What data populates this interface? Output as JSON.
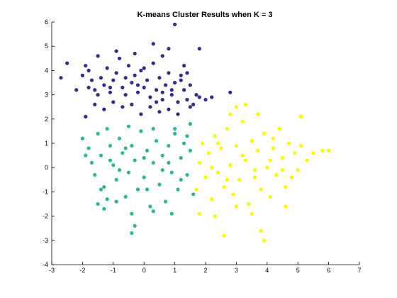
{
  "chart_data": {
    "type": "scatter",
    "title": "K-means Cluster Results when K = 3",
    "xlabel": "",
    "ylabel": "",
    "xlim": [
      -3,
      7
    ],
    "ylim": [
      -4,
      6
    ],
    "xticks": [
      -3,
      -2,
      -1,
      0,
      1,
      2,
      3,
      4,
      5,
      6,
      7
    ],
    "yticks": [
      -4,
      -3,
      -2,
      -1,
      0,
      1,
      2,
      3,
      4,
      5,
      6
    ],
    "grid": false,
    "legend": "none",
    "series": [
      {
        "color": "#352a87",
        "points": [
          [
            -2.7,
            3.7
          ],
          [
            -2.5,
            4.3
          ],
          [
            -2.2,
            3.2
          ],
          [
            -2.0,
            3.8
          ],
          [
            -1.9,
            4.2
          ],
          [
            -1.8,
            4.0
          ],
          [
            -1.7,
            3.6
          ],
          [
            -1.6,
            3.2
          ],
          [
            -1.5,
            3.0
          ],
          [
            -1.4,
            3.7
          ],
          [
            -1.3,
            3.4
          ],
          [
            -1.2,
            4.1
          ],
          [
            -1.1,
            3.1
          ],
          [
            -1.0,
            3.6
          ],
          [
            -0.9,
            3.9
          ],
          [
            -0.8,
            4.5
          ],
          [
            -0.7,
            3.3
          ],
          [
            -0.6,
            3.0
          ],
          [
            -0.5,
            4.2
          ],
          [
            -0.4,
            3.5
          ],
          [
            -0.3,
            3.8
          ],
          [
            -0.2,
            3.1
          ],
          [
            -0.1,
            4.0
          ],
          [
            0.0,
            3.3
          ],
          [
            0.1,
            3.6
          ],
          [
            0.2,
            2.9
          ],
          [
            0.3,
            4.3
          ],
          [
            0.4,
            3.2
          ],
          [
            0.5,
            3.7
          ],
          [
            0.6,
            2.8
          ],
          [
            0.7,
            3.4
          ],
          [
            0.8,
            3.9
          ],
          [
            0.9,
            3.0
          ],
          [
            1.0,
            3.5
          ],
          [
            1.1,
            2.7
          ],
          [
            1.2,
            3.8
          ],
          [
            1.3,
            3.2
          ],
          [
            1.4,
            2.8
          ],
          [
            1.5,
            3.4
          ],
          [
            1.6,
            2.6
          ],
          [
            1.7,
            3.0
          ],
          [
            1.8,
            2.9
          ],
          [
            -1.9,
            2.1
          ],
          [
            -1.6,
            2.6
          ],
          [
            -1.3,
            2.4
          ],
          [
            -1.0,
            2.7
          ],
          [
            -0.7,
            2.5
          ],
          [
            -0.4,
            2.6
          ],
          [
            -0.1,
            2.2
          ],
          [
            0.2,
            2.5
          ],
          [
            0.5,
            2.3
          ],
          [
            0.8,
            2.4
          ],
          [
            1.1,
            2.2
          ],
          [
            1.5,
            2.5
          ],
          [
            -0.9,
            4.8
          ],
          [
            -0.3,
            4.7
          ],
          [
            0.3,
            5.1
          ],
          [
            0.8,
            4.9
          ],
          [
            1.0,
            5.9
          ],
          [
            1.8,
            4.9
          ],
          [
            -1.5,
            4.6
          ],
          [
            0.6,
            4.6
          ],
          [
            1.3,
            4.2
          ],
          [
            2.0,
            2.8
          ],
          [
            2.2,
            2.9
          ],
          [
            2.8,
            3.1
          ],
          [
            -1.1,
            3.3
          ],
          [
            -0.6,
            3.7
          ],
          [
            0.0,
            4.1
          ],
          [
            0.4,
            2.7
          ],
          [
            0.9,
            3.2
          ],
          [
            1.2,
            3.6
          ],
          [
            -1.8,
            3.3
          ],
          [
            -0.2,
            3.4
          ],
          [
            0.6,
            3.1
          ],
          [
            1.4,
            3.9
          ]
        ]
      },
      {
        "color": "#2fb595",
        "points": [
          [
            -2.0,
            1.2
          ],
          [
            -1.8,
            0.8
          ],
          [
            -1.7,
            0.2
          ],
          [
            -1.6,
            -0.3
          ],
          [
            -1.5,
            1.4
          ],
          [
            -1.4,
            0.5
          ],
          [
            -1.3,
            -0.8
          ],
          [
            -1.2,
            -1.3
          ],
          [
            -1.1,
            0.9
          ],
          [
            -1.0,
            0.1
          ],
          [
            -0.9,
            -0.5
          ],
          [
            -0.8,
            1.2
          ],
          [
            -0.7,
            0.6
          ],
          [
            -0.6,
            -1.2
          ],
          [
            -0.5,
            -0.2
          ],
          [
            -0.4,
            0.9
          ],
          [
            -0.3,
            0.3
          ],
          [
            -0.2,
            -0.9
          ],
          [
            -0.1,
            1.5
          ],
          [
            0.0,
            -0.4
          ],
          [
            0.1,
            0.7
          ],
          [
            0.2,
            -1.6
          ],
          [
            0.3,
            0.2
          ],
          [
            0.4,
            1.1
          ],
          [
            0.5,
            -0.7
          ],
          [
            0.6,
            0.5
          ],
          [
            0.7,
            -1.4
          ],
          [
            0.8,
            0.9
          ],
          [
            0.9,
            -0.2
          ],
          [
            1.0,
            1.4
          ],
          [
            1.1,
            -0.9
          ],
          [
            1.2,
            0.4
          ],
          [
            1.3,
            1.0
          ],
          [
            1.4,
            -0.3
          ],
          [
            1.5,
            0.7
          ],
          [
            1.6,
            -1.1
          ],
          [
            -1.5,
            -1.5
          ],
          [
            -1.3,
            -1.7
          ],
          [
            -0.9,
            -1.4
          ],
          [
            -0.4,
            -1.9
          ],
          [
            0.3,
            -1.8
          ],
          [
            0.9,
            -1.9
          ],
          [
            -0.3,
            -2.4
          ],
          [
            -0.4,
            -2.7
          ],
          [
            -1.9,
            0.5
          ],
          [
            -1.2,
            1.6
          ],
          [
            -0.5,
            1.7
          ],
          [
            0.3,
            1.6
          ],
          [
            1.0,
            1.6
          ],
          [
            1.5,
            1.8
          ],
          [
            -0.8,
            -0.1
          ],
          [
            0.0,
            0.4
          ],
          [
            0.6,
            -0.1
          ],
          [
            1.2,
            -0.5
          ],
          [
            -1.1,
            0.3
          ],
          [
            -0.6,
            0.8
          ],
          [
            0.1,
            -0.9
          ],
          [
            0.8,
            0.2
          ],
          [
            1.4,
            1.3
          ],
          [
            -1.4,
            -0.9
          ]
        ]
      },
      {
        "color": "#f9f905",
        "points": [
          [
            1.7,
            -0.9
          ],
          [
            1.8,
            0.2
          ],
          [
            1.9,
            1.0
          ],
          [
            2.0,
            -0.4
          ],
          [
            2.1,
            0.6
          ],
          [
            2.2,
            -1.3
          ],
          [
            2.3,
            1.3
          ],
          [
            2.4,
            -0.2
          ],
          [
            2.5,
            0.8
          ],
          [
            2.6,
            -0.8
          ],
          [
            2.7,
            1.6
          ],
          [
            2.8,
            0.1
          ],
          [
            2.9,
            -1.1
          ],
          [
            3.0,
            0.9
          ],
          [
            3.1,
            -0.5
          ],
          [
            3.2,
            1.9
          ],
          [
            3.3,
            0.3
          ],
          [
            3.4,
            -1.5
          ],
          [
            3.5,
            1.1
          ],
          [
            3.6,
            -0.1
          ],
          [
            3.7,
            0.7
          ],
          [
            3.8,
            -0.9
          ],
          [
            3.9,
            1.4
          ],
          [
            4.0,
            0.0
          ],
          [
            4.1,
            -1.2
          ],
          [
            4.2,
            0.8
          ],
          [
            4.3,
            -0.3
          ],
          [
            4.4,
            1.6
          ],
          [
            4.5,
            0.4
          ],
          [
            4.6,
            -0.8
          ],
          [
            4.7,
            1.0
          ],
          [
            4.8,
            -0.4
          ],
          [
            4.9,
            0.6
          ],
          [
            5.0,
            -0.1
          ],
          [
            5.1,
            0.9
          ],
          [
            5.3,
            0.3
          ],
          [
            5.5,
            0.6
          ],
          [
            5.8,
            0.7
          ],
          [
            6.0,
            0.7
          ],
          [
            1.8,
            -1.9
          ],
          [
            2.3,
            -2.0
          ],
          [
            2.6,
            -2.8
          ],
          [
            3.5,
            -1.9
          ],
          [
            3.8,
            -2.6
          ],
          [
            3.9,
            -3.0
          ],
          [
            4.6,
            -1.6
          ],
          [
            2.8,
            2.2
          ],
          [
            3.0,
            2.5
          ],
          [
            3.3,
            2.6
          ],
          [
            3.7,
            2.2
          ],
          [
            5.1,
            2.1
          ],
          [
            2.2,
            0.0
          ],
          [
            2.7,
            -0.5
          ],
          [
            3.2,
            0.5
          ],
          [
            3.6,
            -0.4
          ],
          [
            4.1,
            0.3
          ],
          [
            4.5,
            -0.1
          ],
          [
            2.4,
            1.0
          ],
          [
            3.0,
            -1.6
          ],
          [
            4.2,
            1.2
          ]
        ]
      }
    ]
  }
}
